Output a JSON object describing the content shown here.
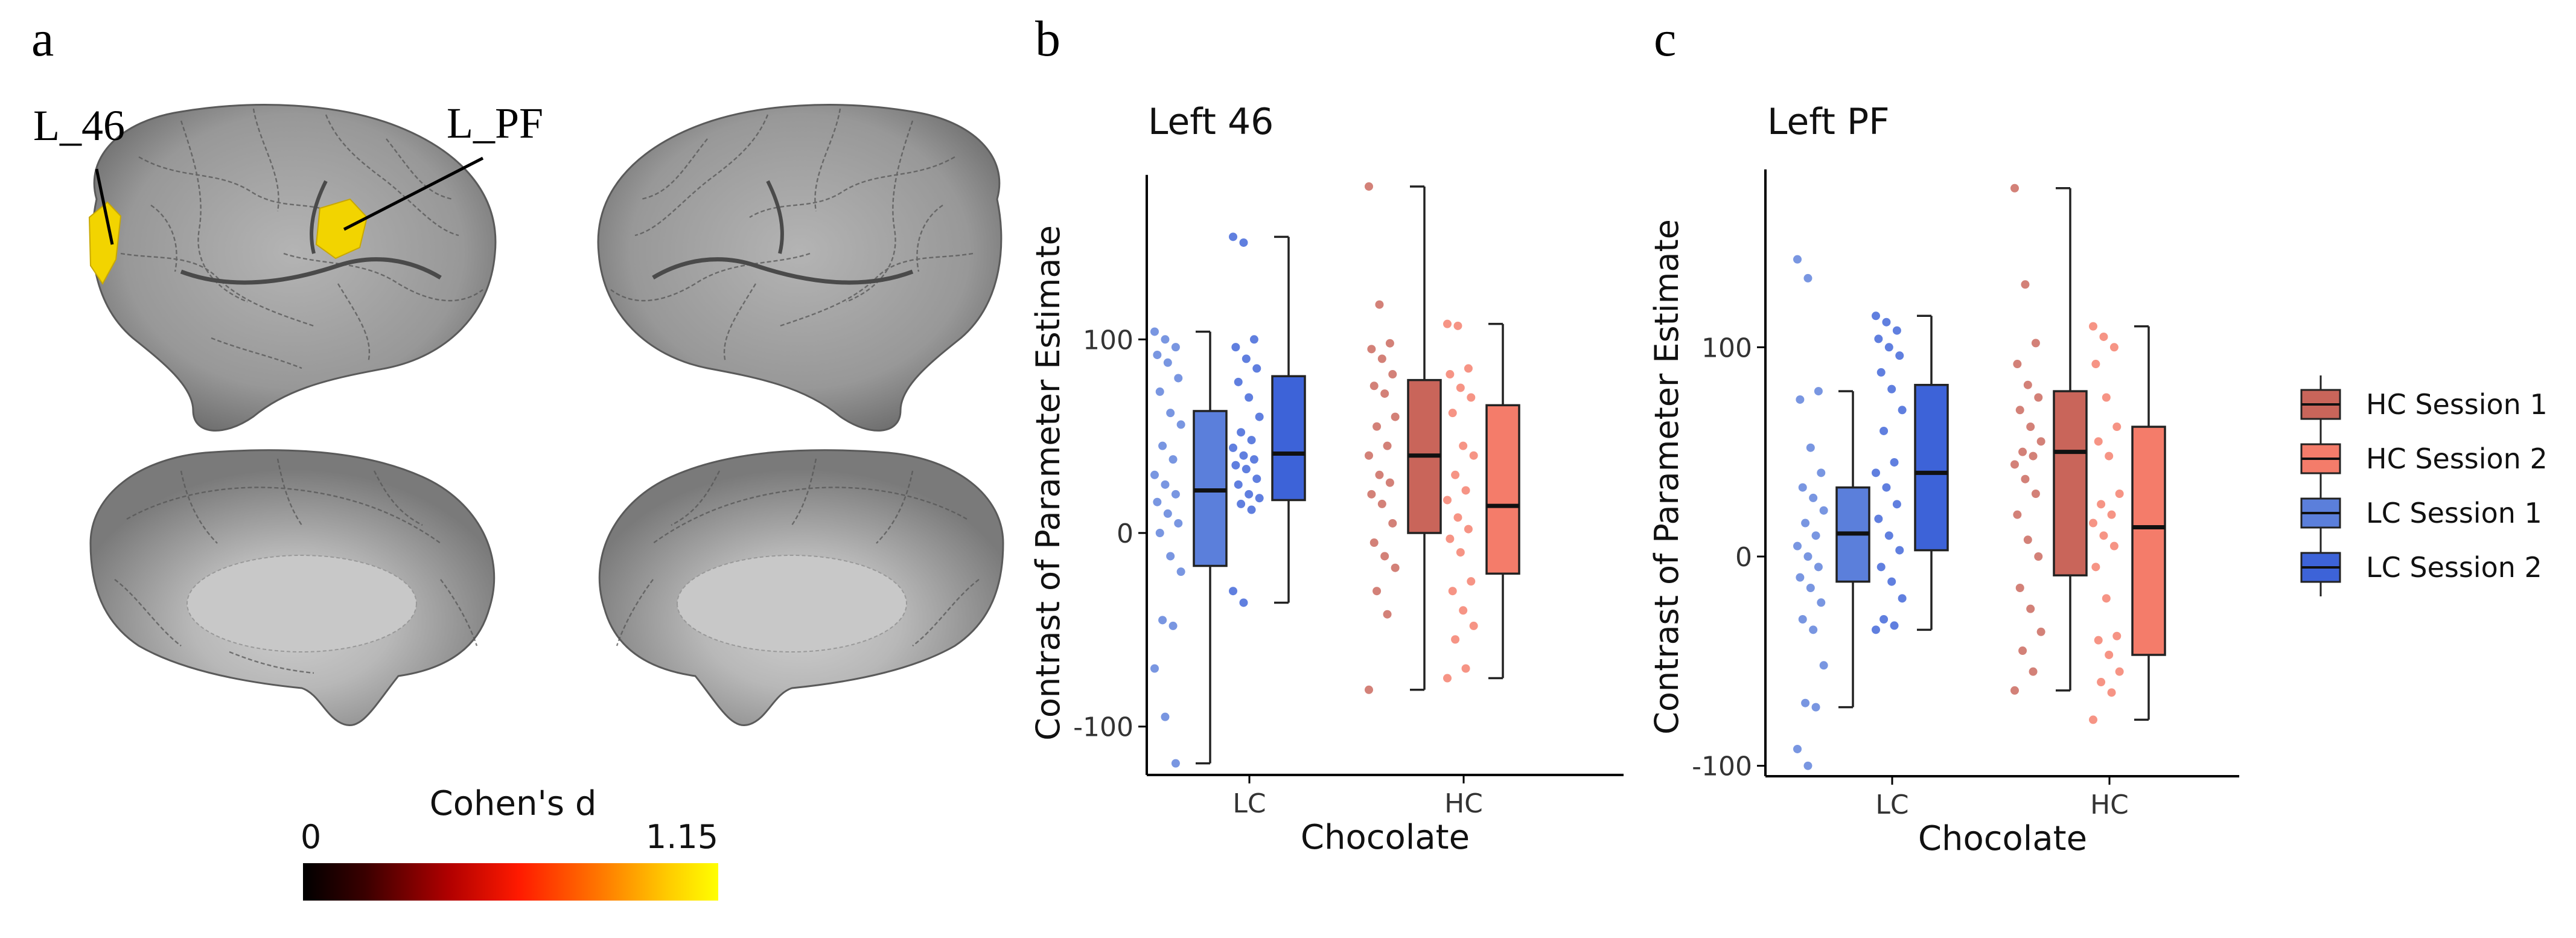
{
  "panels": {
    "a": {
      "label": "a",
      "region_labels": [
        "L_46",
        "L_PF"
      ],
      "colorbar": {
        "title": "Cohen's d",
        "min_label": "0",
        "max_label": "1.15",
        "colors": [
          "#000000",
          "#5a0000",
          "#c00000",
          "#ff2a00",
          "#ff8c00",
          "#ffe000",
          "#ffff00"
        ]
      },
      "brain_color": "#9c9c9c",
      "highlight_color": "#f2d400"
    },
    "b": {
      "label": "b"
    },
    "c": {
      "label": "c"
    }
  },
  "legend": {
    "items": [
      {
        "label": "HC Session 1",
        "color": "#c9655a"
      },
      {
        "label": "HC Session 2",
        "color": "#f47c6a"
      },
      {
        "label": "LC Session 1",
        "color": "#5b7fdb"
      },
      {
        "label": "LC Session 2",
        "color": "#3d63d8"
      }
    ]
  },
  "chart_data": [
    {
      "type": "box",
      "panel": "b",
      "title": "Left 46",
      "xlabel": "Chocolate",
      "ylabel": "Contrast of Parameter Estimate",
      "categories": [
        "LC",
        "HC"
      ],
      "ylim": [
        -125,
        185
      ],
      "yticks": [
        -100,
        0,
        100
      ],
      "boxes": [
        {
          "group": "LC Session 1",
          "category": "LC",
          "min": -119,
          "q1": -17,
          "median": 22,
          "q3": 63,
          "max": 104,
          "color": "#5b7fdb",
          "points": [
            104,
            100,
            96,
            92,
            88,
            80,
            73,
            62,
            56,
            45,
            38,
            30,
            25,
            20,
            16,
            10,
            5,
            0,
            -12,
            -20,
            -45,
            -48,
            -70,
            -95,
            -119
          ]
        },
        {
          "group": "LC Session 2",
          "category": "LC",
          "min": -36,
          "q1": 17,
          "median": 41,
          "q3": 81,
          "max": 153,
          "color": "#3d63d8",
          "points": [
            153,
            150,
            100,
            96,
            90,
            85,
            78,
            70,
            60,
            52,
            48,
            44,
            40,
            38,
            35,
            33,
            28,
            25,
            20,
            18,
            15,
            12,
            -30,
            -36
          ]
        },
        {
          "group": "HC Session 1",
          "category": "HC",
          "min": -81,
          "q1": 0,
          "median": 40,
          "q3": 79,
          "max": 179,
          "color": "#c9655a",
          "points": [
            179,
            118,
            98,
            95,
            90,
            82,
            76,
            72,
            60,
            55,
            45,
            40,
            30,
            26,
            20,
            15,
            5,
            -5,
            -12,
            -18,
            -30,
            -42,
            -81
          ]
        },
        {
          "group": "HC Session 2",
          "category": "HC",
          "min": -75,
          "q1": -21,
          "median": 14,
          "q3": 66,
          "max": 108,
          "color": "#f47c6a",
          "points": [
            108,
            107,
            85,
            82,
            75,
            70,
            62,
            45,
            40,
            30,
            22,
            17,
            8,
            2,
            -3,
            -10,
            -25,
            -30,
            -40,
            -48,
            -55,
            -70,
            -75
          ]
        }
      ]
    },
    {
      "type": "box",
      "panel": "c",
      "title": "Left PF",
      "xlabel": "Chocolate",
      "ylabel": "Contrast of Parameter Estimate",
      "categories": [
        "LC",
        "HC"
      ],
      "ylim": [
        -105,
        185
      ],
      "yticks": [
        -100,
        0,
        100
      ],
      "boxes": [
        {
          "group": "LC Session 1",
          "category": "LC",
          "min": -72,
          "q1": -12,
          "median": 11,
          "q3": 33,
          "max": 79,
          "color": "#5b7fdb",
          "points": [
            142,
            133,
            79,
            75,
            52,
            40,
            33,
            28,
            22,
            16,
            10,
            5,
            0,
            -5,
            -10,
            -15,
            -22,
            -30,
            -35,
            -52,
            -70,
            -72,
            -92,
            -100
          ]
        },
        {
          "group": "LC Session 2",
          "category": "LC",
          "min": -35,
          "q1": 3,
          "median": 40,
          "q3": 82,
          "max": 115,
          "color": "#3d63d8",
          "points": [
            115,
            112,
            108,
            104,
            100,
            96,
            88,
            80,
            70,
            60,
            45,
            40,
            33,
            25,
            18,
            10,
            3,
            -5,
            -12,
            -20,
            -30,
            -33,
            -35
          ]
        },
        {
          "group": "HC Session 1",
          "category": "HC",
          "min": -64,
          "q1": -9,
          "median": 50,
          "q3": 79,
          "max": 176,
          "color": "#c9655a",
          "points": [
            176,
            130,
            102,
            92,
            82,
            76,
            70,
            62,
            55,
            50,
            48,
            44,
            37,
            30,
            20,
            8,
            0,
            -15,
            -25,
            -36,
            -45,
            -55,
            -64
          ]
        },
        {
          "group": "HC Session 2",
          "category": "HC",
          "min": -78,
          "q1": -47,
          "median": 14,
          "q3": 62,
          "max": 110,
          "color": "#f47c6a",
          "points": [
            110,
            105,
            100,
            92,
            76,
            62,
            55,
            48,
            30,
            25,
            20,
            16,
            10,
            5,
            -5,
            -20,
            -38,
            -40,
            -47,
            -55,
            -60,
            -65,
            -78
          ]
        }
      ]
    }
  ]
}
